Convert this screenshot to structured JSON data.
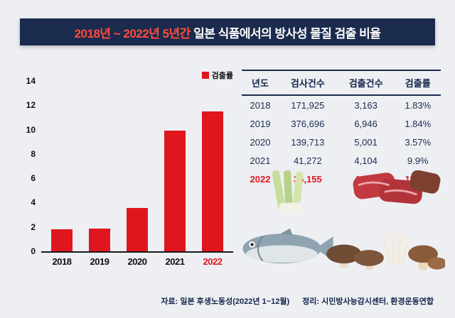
{
  "title": {
    "part_red": "2018년 ~ 2022년 5년간 ",
    "part_white": "일본 식품에서의 방사성 물질 검출 비율"
  },
  "chart_data": {
    "type": "bar",
    "legend": "검출률",
    "categories": [
      "2018",
      "2019",
      "2020",
      "2021",
      "2022"
    ],
    "values": [
      1.83,
      1.84,
      3.57,
      9.9,
      11.5
    ],
    "ylim": [
      0,
      14
    ],
    "ytick_step": 2,
    "highlight_category": "2022",
    "bar_color": "#e0161f",
    "grid": false,
    "legend_position": "top-right"
  },
  "table": {
    "headers": [
      "년도",
      "검사건수",
      "검출건수",
      "검출률"
    ],
    "rows": [
      [
        "2018",
        "171,925",
        "3,163",
        "1.83%"
      ],
      [
        "2019",
        "376,696",
        "6,946",
        "1.84%"
      ],
      [
        "2020",
        "139,713",
        "5,001",
        "3.57%"
      ],
      [
        "2021",
        "41,272",
        "4,104",
        "9.9%"
      ],
      [
        "2022",
        "36,155",
        "4,142",
        "11.5%"
      ]
    ],
    "highlight_year": "2022"
  },
  "footer": {
    "source": "자료: 일본 후생노동성(2022년 1~12월)",
    "credit": "정리: 시민방사능감시센터, 환경운동연합"
  },
  "colors": {
    "accent_red": "#e0161f",
    "title_red": "#ff4b3e",
    "navy": "#1b2b4d",
    "background": "#edeff3"
  }
}
